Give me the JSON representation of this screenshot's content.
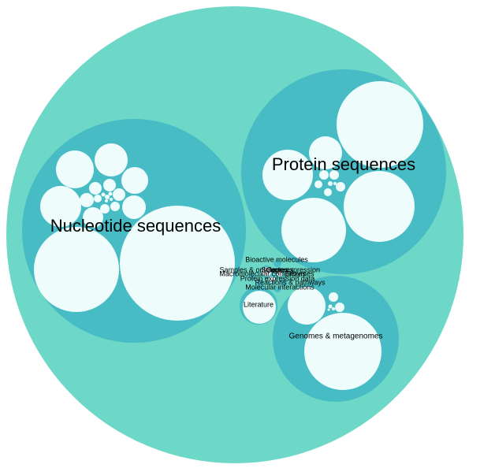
{
  "colors": {
    "background": "#ffffff",
    "root_fill": "#6dd8c7",
    "group_fill": "#47bcc5",
    "leaf_fill": "#eefcfc"
  },
  "labels": {
    "nucleotide": "Nucleotide sequences",
    "protein": "Protein sequences",
    "genomes": "Genomes & metagenomes",
    "literature": "Literature",
    "bioactive": "Bioactive molecules",
    "samples": "Samples & ontologies",
    "expression": "Gene expression",
    "structures": "Structures",
    "macromolecular": "Macromolecular complexes",
    "enzymes": "Enzymes",
    "protein_expression": "Protein expression data",
    "reactions_pathways": "Reactions & pathways",
    "molecular_interactions": "Molecular interactions"
  }
}
